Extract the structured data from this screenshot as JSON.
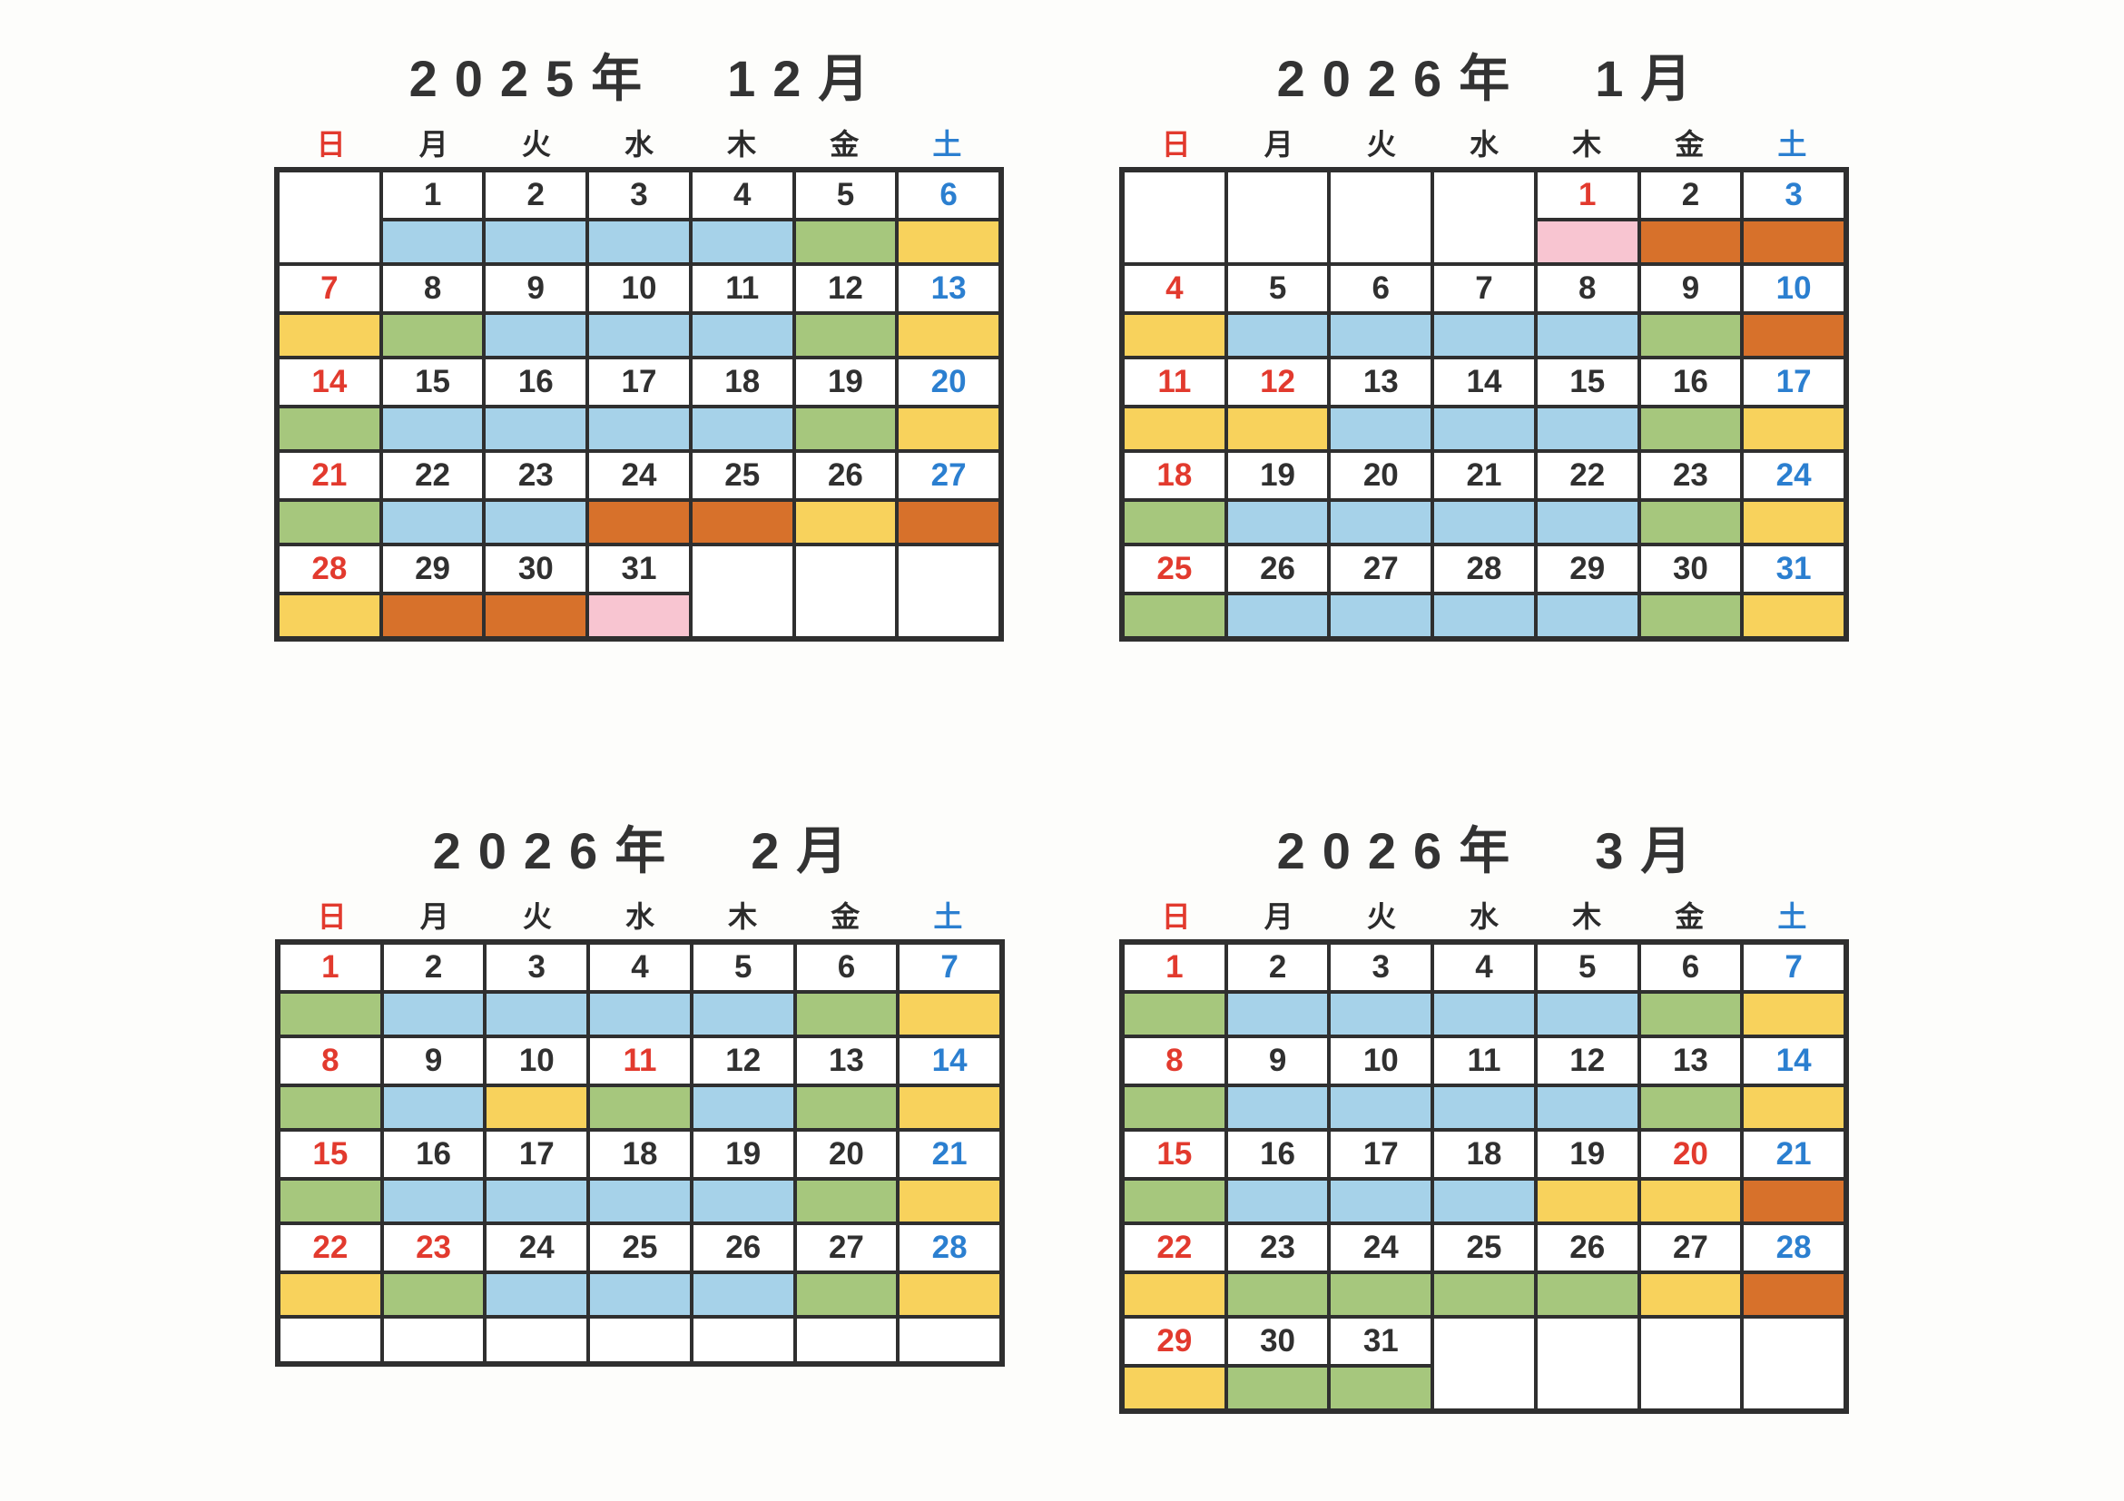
{
  "palette": {
    "blue": "#a6d2e9",
    "green": "#a6c77d",
    "yellow": "#f8d25c",
    "orange": "#d7712b",
    "pink": "#f8c5d1",
    "white": "#ffffff",
    "red_text": "#e23a2e",
    "blue_text": "#2b7fd0",
    "black_text": "#2b2b2b",
    "border": "#2f2f2f"
  },
  "weekdays": [
    {
      "label": "日",
      "en": "sunday",
      "cls": "red"
    },
    {
      "label": "月",
      "en": "monday",
      "cls": "blk"
    },
    {
      "label": "火",
      "en": "tuesday",
      "cls": "blk"
    },
    {
      "label": "水",
      "en": "wednesday",
      "cls": "blk"
    },
    {
      "label": "木",
      "en": "thursday",
      "cls": "blk"
    },
    {
      "label": "金",
      "en": "friday",
      "cls": "blk"
    },
    {
      "label": "土",
      "en": "saturday",
      "cls": "blue"
    }
  ],
  "calendars": [
    {
      "title": "2025年　12月",
      "weeks": [
        {
          "days": [
            {
              "merged": true
            },
            {
              "num": "1",
              "nc": "black",
              "fill": "blue"
            },
            {
              "num": "2",
              "nc": "black",
              "fill": "blue"
            },
            {
              "num": "3",
              "nc": "black",
              "fill": "blue"
            },
            {
              "num": "4",
              "nc": "black",
              "fill": "blue"
            },
            {
              "num": "5",
              "nc": "black",
              "fill": "green"
            },
            {
              "num": "6",
              "nc": "blue",
              "fill": "yellow"
            }
          ]
        },
        {
          "days": [
            {
              "num": "7",
              "nc": "red",
              "fill": "yellow"
            },
            {
              "num": "8",
              "nc": "black",
              "fill": "green"
            },
            {
              "num": "9",
              "nc": "black",
              "fill": "blue"
            },
            {
              "num": "10",
              "nc": "black",
              "fill": "blue"
            },
            {
              "num": "11",
              "nc": "black",
              "fill": "blue"
            },
            {
              "num": "12",
              "nc": "black",
              "fill": "green"
            },
            {
              "num": "13",
              "nc": "blue",
              "fill": "yellow"
            }
          ]
        },
        {
          "days": [
            {
              "num": "14",
              "nc": "red",
              "fill": "green"
            },
            {
              "num": "15",
              "nc": "black",
              "fill": "blue"
            },
            {
              "num": "16",
              "nc": "black",
              "fill": "blue"
            },
            {
              "num": "17",
              "nc": "black",
              "fill": "blue"
            },
            {
              "num": "18",
              "nc": "black",
              "fill": "blue"
            },
            {
              "num": "19",
              "nc": "black",
              "fill": "green"
            },
            {
              "num": "20",
              "nc": "blue",
              "fill": "yellow"
            }
          ]
        },
        {
          "days": [
            {
              "num": "21",
              "nc": "red",
              "fill": "green"
            },
            {
              "num": "22",
              "nc": "black",
              "fill": "blue"
            },
            {
              "num": "23",
              "nc": "black",
              "fill": "blue"
            },
            {
              "num": "24",
              "nc": "black",
              "fill": "orange"
            },
            {
              "num": "25",
              "nc": "black",
              "fill": "orange"
            },
            {
              "num": "26",
              "nc": "black",
              "fill": "yellow"
            },
            {
              "num": "27",
              "nc": "blue",
              "fill": "orange"
            }
          ]
        },
        {
          "days": [
            {
              "num": "28",
              "nc": "red",
              "fill": "yellow"
            },
            {
              "num": "29",
              "nc": "black",
              "fill": "orange"
            },
            {
              "num": "30",
              "nc": "black",
              "fill": "orange"
            },
            {
              "num": "31",
              "nc": "black",
              "fill": "pink"
            },
            {
              "merged": true
            },
            {
              "merged": true
            },
            {
              "merged": true
            }
          ]
        }
      ]
    },
    {
      "title": "2026年　1月",
      "weeks": [
        {
          "days": [
            {
              "merged": true
            },
            {
              "merged": true
            },
            {
              "merged": true
            },
            {
              "merged": true
            },
            {
              "num": "1",
              "nc": "red",
              "fill": "pink"
            },
            {
              "num": "2",
              "nc": "black",
              "fill": "orange"
            },
            {
              "num": "3",
              "nc": "blue",
              "fill": "orange"
            }
          ]
        },
        {
          "days": [
            {
              "num": "4",
              "nc": "red",
              "fill": "yellow"
            },
            {
              "num": "5",
              "nc": "black",
              "fill": "blue"
            },
            {
              "num": "6",
              "nc": "black",
              "fill": "blue"
            },
            {
              "num": "7",
              "nc": "black",
              "fill": "blue"
            },
            {
              "num": "8",
              "nc": "black",
              "fill": "blue"
            },
            {
              "num": "9",
              "nc": "black",
              "fill": "green"
            },
            {
              "num": "10",
              "nc": "blue",
              "fill": "orange"
            }
          ]
        },
        {
          "days": [
            {
              "num": "11",
              "nc": "red",
              "fill": "yellow"
            },
            {
              "num": "12",
              "nc": "red",
              "fill": "yellow"
            },
            {
              "num": "13",
              "nc": "black",
              "fill": "blue"
            },
            {
              "num": "14",
              "nc": "black",
              "fill": "blue"
            },
            {
              "num": "15",
              "nc": "black",
              "fill": "blue"
            },
            {
              "num": "16",
              "nc": "black",
              "fill": "green"
            },
            {
              "num": "17",
              "nc": "blue",
              "fill": "yellow"
            }
          ]
        },
        {
          "days": [
            {
              "num": "18",
              "nc": "red",
              "fill": "green"
            },
            {
              "num": "19",
              "nc": "black",
              "fill": "blue"
            },
            {
              "num": "20",
              "nc": "black",
              "fill": "blue"
            },
            {
              "num": "21",
              "nc": "black",
              "fill": "blue"
            },
            {
              "num": "22",
              "nc": "black",
              "fill": "blue"
            },
            {
              "num": "23",
              "nc": "black",
              "fill": "green"
            },
            {
              "num": "24",
              "nc": "blue",
              "fill": "yellow"
            }
          ]
        },
        {
          "days": [
            {
              "num": "25",
              "nc": "red",
              "fill": "green"
            },
            {
              "num": "26",
              "nc": "black",
              "fill": "blue"
            },
            {
              "num": "27",
              "nc": "black",
              "fill": "blue"
            },
            {
              "num": "28",
              "nc": "black",
              "fill": "blue"
            },
            {
              "num": "29",
              "nc": "black",
              "fill": "blue"
            },
            {
              "num": "30",
              "nc": "black",
              "fill": "green"
            },
            {
              "num": "31",
              "nc": "blue",
              "fill": "yellow"
            }
          ]
        }
      ]
    },
    {
      "title": "2026年　2月",
      "extra_empty_row": true,
      "weeks": [
        {
          "days": [
            {
              "num": "1",
              "nc": "red",
              "fill": "green"
            },
            {
              "num": "2",
              "nc": "black",
              "fill": "blue"
            },
            {
              "num": "3",
              "nc": "black",
              "fill": "blue"
            },
            {
              "num": "4",
              "nc": "black",
              "fill": "blue"
            },
            {
              "num": "5",
              "nc": "black",
              "fill": "blue"
            },
            {
              "num": "6",
              "nc": "black",
              "fill": "green"
            },
            {
              "num": "7",
              "nc": "blue",
              "fill": "yellow"
            }
          ]
        },
        {
          "days": [
            {
              "num": "8",
              "nc": "red",
              "fill": "green"
            },
            {
              "num": "9",
              "nc": "black",
              "fill": "blue"
            },
            {
              "num": "10",
              "nc": "black",
              "fill": "yellow"
            },
            {
              "num": "11",
              "nc": "red",
              "fill": "green"
            },
            {
              "num": "12",
              "nc": "black",
              "fill": "blue"
            },
            {
              "num": "13",
              "nc": "black",
              "fill": "green"
            },
            {
              "num": "14",
              "nc": "blue",
              "fill": "yellow"
            }
          ]
        },
        {
          "days": [
            {
              "num": "15",
              "nc": "red",
              "fill": "green"
            },
            {
              "num": "16",
              "nc": "black",
              "fill": "blue"
            },
            {
              "num": "17",
              "nc": "black",
              "fill": "blue"
            },
            {
              "num": "18",
              "nc": "black",
              "fill": "blue"
            },
            {
              "num": "19",
              "nc": "black",
              "fill": "blue"
            },
            {
              "num": "20",
              "nc": "black",
              "fill": "green"
            },
            {
              "num": "21",
              "nc": "blue",
              "fill": "yellow"
            }
          ]
        },
        {
          "days": [
            {
              "num": "22",
              "nc": "red",
              "fill": "yellow"
            },
            {
              "num": "23",
              "nc": "red",
              "fill": "green"
            },
            {
              "num": "24",
              "nc": "black",
              "fill": "blue"
            },
            {
              "num": "25",
              "nc": "black",
              "fill": "blue"
            },
            {
              "num": "26",
              "nc": "black",
              "fill": "blue"
            },
            {
              "num": "27",
              "nc": "black",
              "fill": "green"
            },
            {
              "num": "28",
              "nc": "blue",
              "fill": "yellow"
            }
          ]
        }
      ]
    },
    {
      "title": "2026年　3月",
      "weeks": [
        {
          "days": [
            {
              "num": "1",
              "nc": "red",
              "fill": "green"
            },
            {
              "num": "2",
              "nc": "black",
              "fill": "blue"
            },
            {
              "num": "3",
              "nc": "black",
              "fill": "blue"
            },
            {
              "num": "4",
              "nc": "black",
              "fill": "blue"
            },
            {
              "num": "5",
              "nc": "black",
              "fill": "blue"
            },
            {
              "num": "6",
              "nc": "black",
              "fill": "green"
            },
            {
              "num": "7",
              "nc": "blue",
              "fill": "yellow"
            }
          ]
        },
        {
          "days": [
            {
              "num": "8",
              "nc": "red",
              "fill": "green"
            },
            {
              "num": "9",
              "nc": "black",
              "fill": "blue"
            },
            {
              "num": "10",
              "nc": "black",
              "fill": "blue"
            },
            {
              "num": "11",
              "nc": "black",
              "fill": "blue"
            },
            {
              "num": "12",
              "nc": "black",
              "fill": "blue"
            },
            {
              "num": "13",
              "nc": "black",
              "fill": "green"
            },
            {
              "num": "14",
              "nc": "blue",
              "fill": "yellow"
            }
          ]
        },
        {
          "days": [
            {
              "num": "15",
              "nc": "red",
              "fill": "green"
            },
            {
              "num": "16",
              "nc": "black",
              "fill": "blue"
            },
            {
              "num": "17",
              "nc": "black",
              "fill": "blue"
            },
            {
              "num": "18",
              "nc": "black",
              "fill": "blue"
            },
            {
              "num": "19",
              "nc": "black",
              "fill": "yellow"
            },
            {
              "num": "20",
              "nc": "red",
              "fill": "yellow"
            },
            {
              "num": "21",
              "nc": "blue",
              "fill": "orange"
            }
          ]
        },
        {
          "days": [
            {
              "num": "22",
              "nc": "red",
              "fill": "yellow"
            },
            {
              "num": "23",
              "nc": "black",
              "fill": "green"
            },
            {
              "num": "24",
              "nc": "black",
              "fill": "green"
            },
            {
              "num": "25",
              "nc": "black",
              "fill": "green"
            },
            {
              "num": "26",
              "nc": "black",
              "fill": "green"
            },
            {
              "num": "27",
              "nc": "black",
              "fill": "yellow"
            },
            {
              "num": "28",
              "nc": "blue",
              "fill": "orange"
            }
          ]
        },
        {
          "days": [
            {
              "num": "29",
              "nc": "red",
              "fill": "yellow"
            },
            {
              "num": "30",
              "nc": "black",
              "fill": "green"
            },
            {
              "num": "31",
              "nc": "black",
              "fill": "green"
            },
            {
              "merged": true
            },
            {
              "merged": true
            },
            {
              "merged": true
            },
            {
              "merged": true
            }
          ]
        }
      ]
    }
  ]
}
